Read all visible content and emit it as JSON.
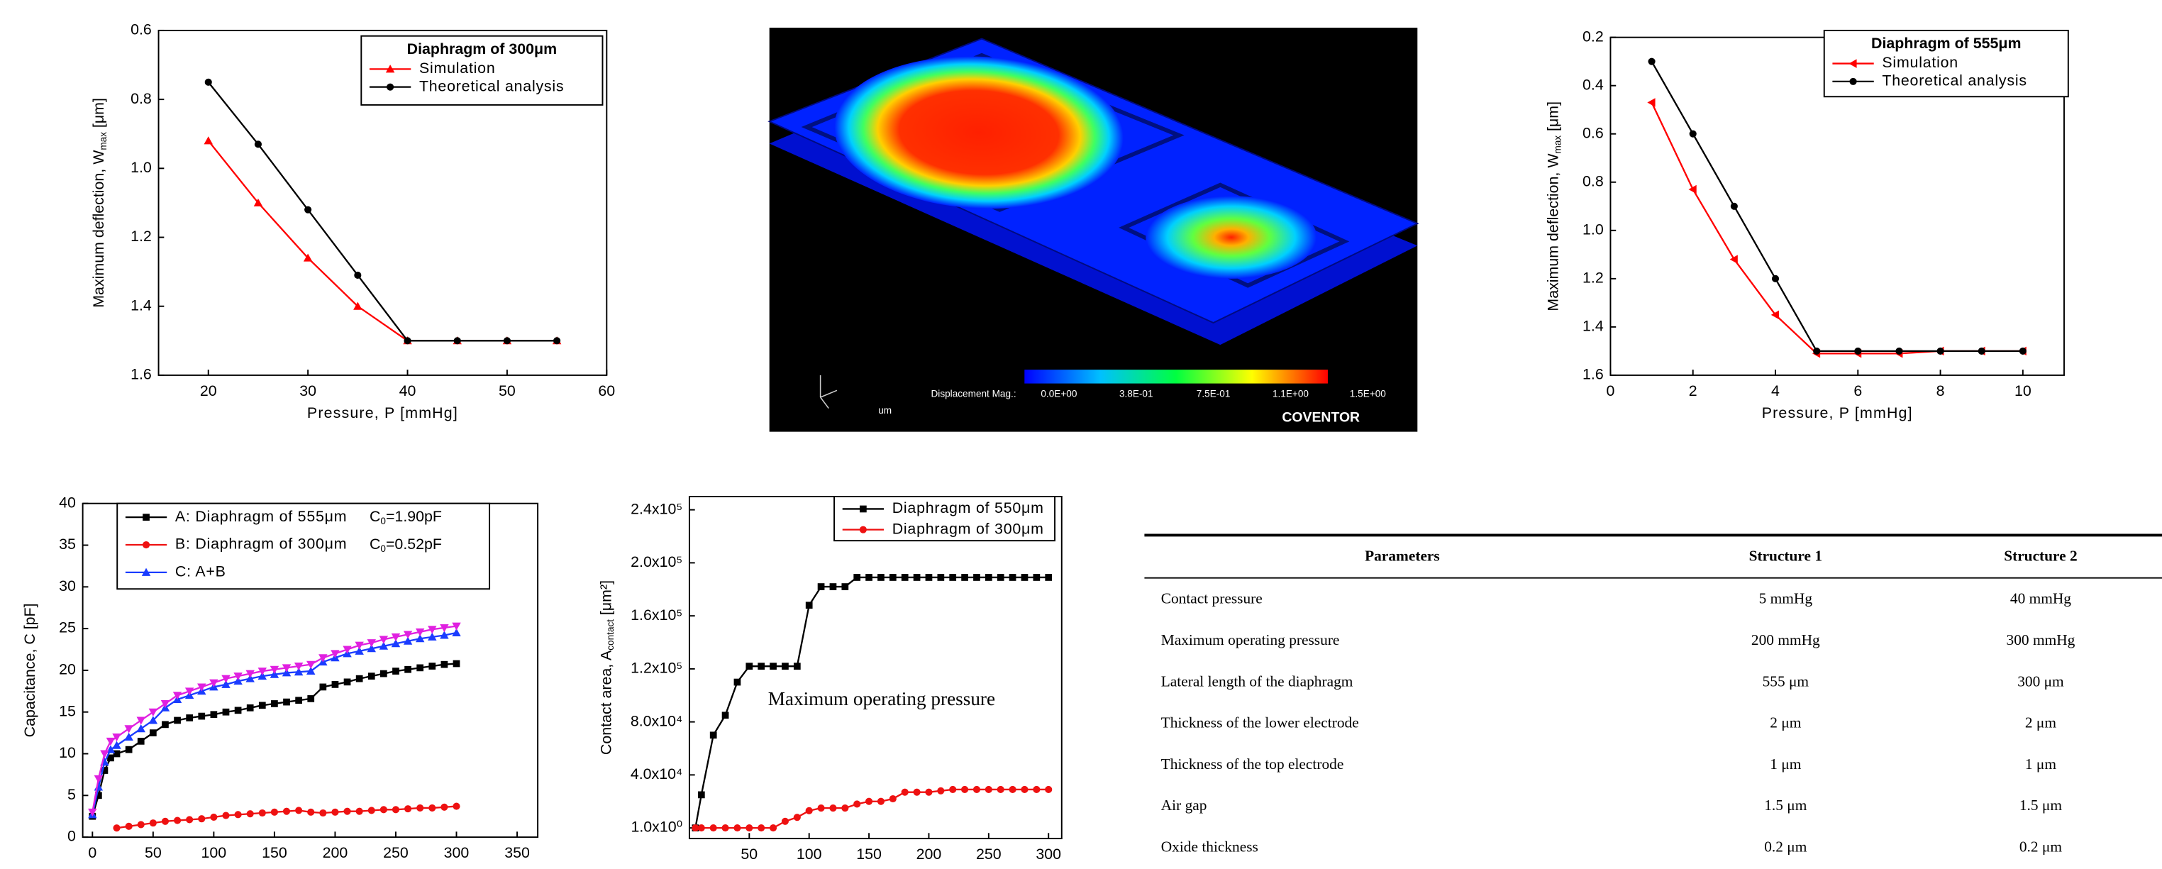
{
  "chart_data": [
    {
      "type": "line",
      "legend_title": "Diaphragm of 300μm",
      "x_label": "Pressure, P [mmHg]",
      "y_label": "Maximum deflection, W",
      "y_label_sub": "max",
      "y_label_unit": "[μm]",
      "x": [
        20,
        25,
        30,
        35,
        40,
        45,
        50,
        55
      ],
      "xlim": [
        15,
        60
      ],
      "xticks": [
        20,
        30,
        40,
        50,
        60
      ],
      "ylim": [
        0.6,
        1.6
      ],
      "y_inverted": true,
      "yticks": [
        0.6,
        0.8,
        {
          "value": 1,
          "label": "1.0"
        },
        1.2,
        1.4,
        1.6
      ],
      "series": [
        {
          "name": "Simulation",
          "color": "#ff0000",
          "marker": "triangle",
          "values": [
            0.92,
            1.1,
            1.26,
            1.4,
            1.5,
            1.5,
            1.5,
            1.5
          ]
        },
        {
          "name": "Theoretical analysis",
          "color": "#000000",
          "marker": "circle",
          "values": [
            0.75,
            0.93,
            1.12,
            1.31,
            1.5,
            1.5,
            1.5,
            1.5
          ]
        }
      ]
    },
    {
      "type": "line",
      "legend_title": "Diaphragm of 555μm",
      "x_label": "Pressure, P [mmHg]",
      "y_label": "Maximum deflection, W",
      "y_label_sub": "max",
      "y_label_unit": "[μm]",
      "x": [
        1,
        2,
        3,
        4,
        5,
        6,
        7,
        8,
        9,
        10
      ],
      "xlim": [
        0,
        11
      ],
      "xticks": [
        0,
        2,
        4,
        6,
        8,
        10
      ],
      "ylim": [
        0.2,
        1.6
      ],
      "y_inverted": true,
      "yticks": [
        0.2,
        0.4,
        0.6,
        0.8,
        {
          "value": 1,
          "label": "1.0"
        },
        1.2,
        1.4,
        1.6
      ],
      "series": [
        {
          "name": "Simulation",
          "color": "#ff0000",
          "marker": "triangle-left",
          "values": [
            0.47,
            0.83,
            1.12,
            1.35,
            1.51,
            1.51,
            1.51,
            1.5,
            1.5,
            1.5
          ]
        },
        {
          "name": "Theoretical analysis",
          "color": "#000000",
          "marker": "circle",
          "values": [
            0.3,
            0.6,
            0.9,
            1.2,
            1.5,
            1.5,
            1.5,
            1.5,
            1.5,
            1.5
          ]
        }
      ]
    },
    {
      "type": "line",
      "y_label": "Capacitance, C [pF]",
      "x": [
        0,
        5,
        10,
        15,
        20,
        30,
        40,
        50,
        60,
        70,
        80,
        90,
        100,
        110,
        120,
        130,
        140,
        150,
        160,
        170,
        180,
        190,
        200,
        210,
        220,
        230,
        240,
        250,
        260,
        270,
        280,
        290,
        300
      ],
      "xlim": [
        -8,
        367
      ],
      "xticks": [
        0,
        50,
        100,
        150,
        200,
        250,
        300,
        350
      ],
      "ylim": [
        0,
        40
      ],
      "yticks": [
        0,
        5,
        10,
        15,
        20,
        25,
        30,
        35,
        40
      ],
      "series": [
        {
          "name": "A: Diaphragm of 555μm",
          "capacitance_symbol": "C",
          "capacitance_subscript": "0",
          "capacitance_text": "=1.90pF",
          "color": "#000000",
          "marker": "square",
          "values": [
            2.5,
            5,
            8,
            9.5,
            10,
            10.5,
            11.5,
            12.5,
            13.5,
            14,
            14.3,
            14.5,
            14.7,
            15,
            15.2,
            15.5,
            15.8,
            16,
            16.2,
            16.4,
            16.6,
            18,
            18.3,
            18.6,
            19,
            19.3,
            19.6,
            19.9,
            20.1,
            20.3,
            20.5,
            20.7,
            20.8
          ]
        },
        {
          "name": "B: Diaphragm of 300μm",
          "capacitance_symbol": "C",
          "capacitance_subscript": "0",
          "capacitance_text": "=0.52pF",
          "color": "#ee1111",
          "marker": "circle",
          "values": [
            null,
            null,
            null,
            null,
            1.1,
            1.3,
            1.5,
            1.7,
            1.9,
            2,
            2.1,
            2.2,
            2.4,
            2.6,
            2.7,
            2.8,
            2.9,
            3,
            3.1,
            3.2,
            3,
            2.9,
            3,
            3.1,
            3.1,
            3.2,
            3.3,
            3.3,
            3.4,
            3.5,
            3.5,
            3.6,
            3.7
          ]
        },
        {
          "name": "C: A+B",
          "color": "#1a3cff",
          "marker": "triangle",
          "values": [
            2.7,
            6,
            9,
            10.5,
            11,
            12,
            13,
            14,
            15.5,
            16.5,
            17,
            17.5,
            18,
            18.3,
            18.7,
            19,
            19.3,
            19.5,
            19.7,
            19.8,
            19.9,
            21,
            21.5,
            22,
            22.3,
            22.6,
            22.9,
            23.2,
            23.5,
            23.8,
            24,
            24.2,
            24.5
          ]
        },
        {
          "color": "#e020e0",
          "marker": "triangle-down",
          "values": [
            3,
            7,
            10,
            11.5,
            12,
            13,
            14,
            15,
            16,
            17,
            17.5,
            18,
            18.5,
            19,
            19.3,
            19.6,
            19.9,
            20.1,
            20.3,
            20.5,
            20.7,
            21.5,
            22,
            22.5,
            23,
            23.3,
            23.7,
            24,
            24.3,
            24.6,
            24.9,
            25.1,
            25.3
          ]
        }
      ]
    },
    {
      "type": "line",
      "y_label": "Contact area, A",
      "y_label_sub": "contact",
      "y_label_unit": "[μm²]",
      "annotation": "Maximum operating pressure",
      "x": [
        5,
        10,
        20,
        30,
        40,
        50,
        60,
        70,
        80,
        90,
        100,
        110,
        120,
        130,
        140,
        150,
        160,
        170,
        180,
        190,
        200,
        210,
        220,
        230,
        240,
        250,
        260,
        270,
        280,
        290,
        300
      ],
      "xlim": [
        0,
        311
      ],
      "xticks": [
        50,
        100,
        150,
        200,
        250,
        300
      ],
      "ylim": [
        -8000,
        250000
      ],
      "yticks": [
        {
          "value": 1,
          "label": "1.0x10⁰"
        },
        {
          "value": 40000,
          "label": "4.0x10⁴"
        },
        {
          "value": 80000,
          "label": "8.0x10⁴"
        },
        {
          "value": 120000,
          "label": "1.2x10⁵"
        },
        {
          "value": 160000,
          "label": "1.6x10⁵"
        },
        {
          "value": 200000,
          "label": "2.0x10⁵"
        },
        {
          "value": 240000,
          "label": "2.4x10⁵"
        }
      ],
      "series": [
        {
          "name": "Diaphragm of 550μm",
          "color": "#000000",
          "marker": "square",
          "values": [
            1,
            25000,
            70000,
            85000,
            110000,
            122000,
            122000,
            122000,
            122000,
            122000,
            168000,
            182000,
            182000,
            182000,
            189000,
            189000,
            189000,
            189000,
            189000,
            189000,
            189000,
            189000,
            189000,
            189000,
            189000,
            189000,
            189000,
            189000,
            189000,
            189000,
            189000
          ]
        },
        {
          "name": "Diaphragm of 300μm",
          "color": "#ee1111",
          "marker": "circle",
          "values": [
            1,
            1,
            1,
            1,
            1,
            1,
            1,
            1,
            5000,
            8000,
            13000,
            15000,
            15000,
            15000,
            18000,
            20000,
            20000,
            22000,
            27000,
            27000,
            27000,
            28000,
            29000,
            29000,
            29000,
            29000,
            29000,
            29000,
            29000,
            29000,
            29000
          ]
        }
      ]
    }
  ],
  "image": {
    "colorbar_title": "Displacement Mag.:",
    "colorbar_labels": [
      "0.0E+00",
      "3.8E-01",
      "7.5E-01",
      "1.1E+00",
      "1.5E+00"
    ],
    "unit": "um",
    "brand": "COVENTOR"
  },
  "table": {
    "header": [
      "Parameters",
      "Structure 1",
      "Structure 2"
    ],
    "rows": [
      [
        "Contact pressure",
        "5 mmHg",
        "40 mmHg"
      ],
      [
        "Maximum operating pressure",
        "200 mmHg",
        "300 mmHg"
      ],
      [
        "Lateral length of the diaphragm",
        "555 μm",
        "300 μm"
      ],
      [
        "Thickness of the lower electrode",
        "2 μm",
        "2 μm"
      ],
      [
        "Thickness of the top electrode",
        "1 μm",
        "1 μm"
      ],
      [
        "Air gap",
        "1.5 μm",
        "1.5 μm"
      ],
      [
        "Oxide thickness",
        "0.2 μm",
        "0.2 μm"
      ]
    ]
  }
}
